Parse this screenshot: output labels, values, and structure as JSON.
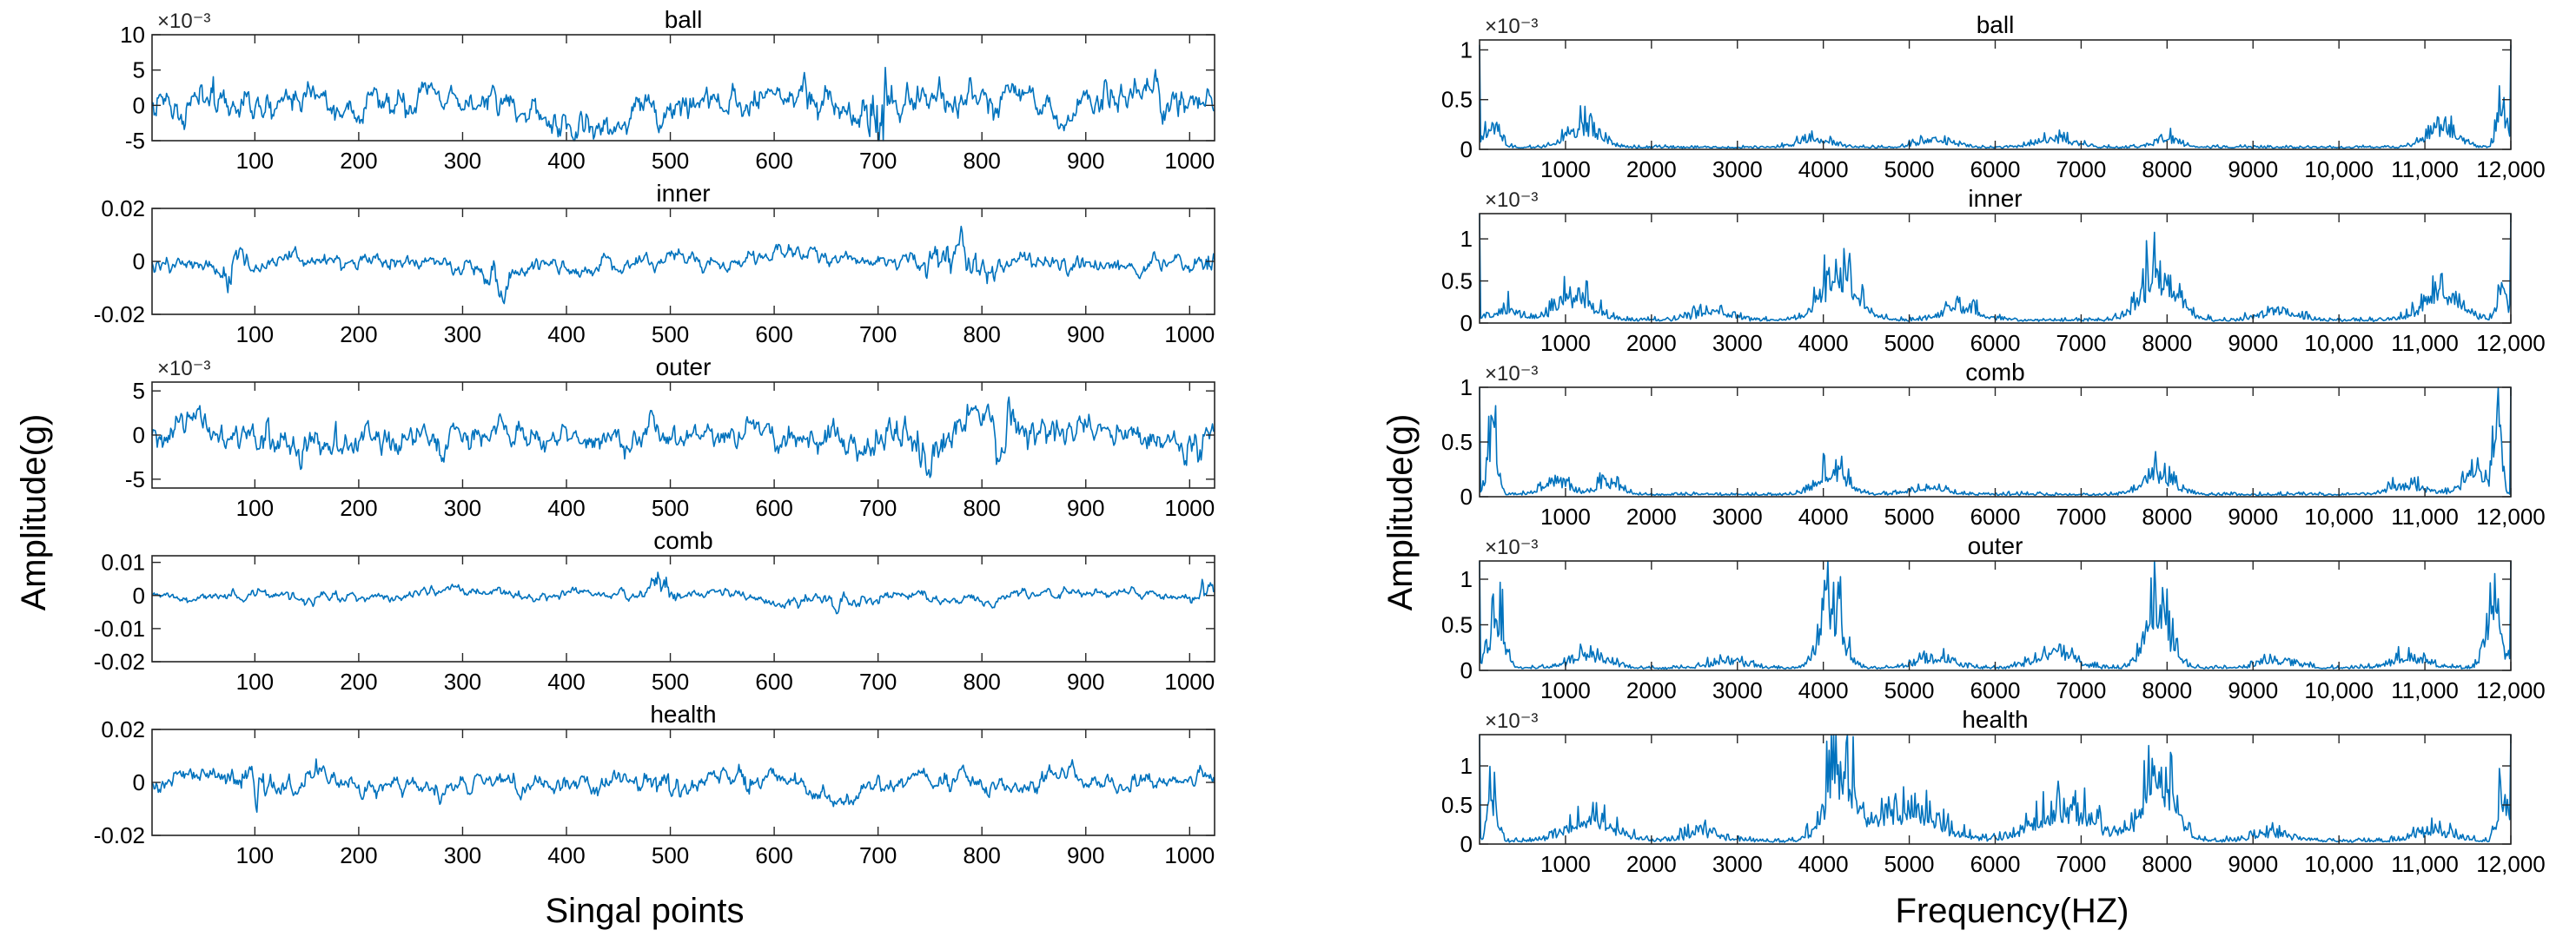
{
  "colors": {
    "trace": "#0072BD",
    "axis": "#262626",
    "background": "#ffffff"
  },
  "chart_data": [
    {
      "panel": "time-domain",
      "type": "line",
      "xlabel": "Singal points",
      "ylabel": "Amplitude(g)",
      "xlim": [
        1,
        1024
      ],
      "xticks": [
        100,
        200,
        300,
        400,
        500,
        600,
        700,
        800,
        900,
        1000
      ],
      "xtick_labels": [
        "100",
        "200",
        "300",
        "400",
        "500",
        "600",
        "700",
        "800",
        "900",
        "1000"
      ],
      "subplots": [
        {
          "title": "ball",
          "exponent": "×10⁻³",
          "ylim": [
            -5,
            10
          ],
          "yticks": [
            -5,
            0,
            5,
            10
          ],
          "ytick_labels": [
            "-5",
            "0",
            "5",
            "10"
          ],
          "amp": 2.6,
          "bias": 0.8,
          "bursts": [
            [
              60,
              4,
              1.5
            ],
            [
              700,
              10,
              3.8
            ],
            [
              990,
              15,
              1.6
            ]
          ],
          "clip": [
            -5,
            10
          ]
        },
        {
          "title": "inner",
          "exponent": "",
          "ylim": [
            -0.02,
            0.02
          ],
          "yticks": [
            -0.02,
            0,
            0.02
          ],
          "ytick_labels": [
            "-0.02",
            "0",
            "0.02"
          ],
          "amp": 0.0036,
          "bias": 0,
          "bursts": [
            [
              80,
              10,
              2.2
            ],
            [
              335,
              12,
              2.3
            ],
            [
              780,
              35,
              2.4
            ],
            [
              1018,
              6,
              2.2
            ]
          ],
          "clip": [
            -0.02,
            0.02
          ]
        },
        {
          "title": "outer",
          "exponent": "×10⁻³",
          "ylim": [
            -6,
            6
          ],
          "yticks": [
            -5,
            0,
            5
          ],
          "ytick_labels": [
            "-5",
            "0",
            "5"
          ],
          "amp": 1.8,
          "bias": 0,
          "bursts": [
            [
              160,
              90,
              1.3
            ],
            [
              745,
              30,
              2.0
            ],
            [
              820,
              15,
              2.2
            ],
            [
              1005,
              10,
              1.6
            ]
          ],
          "clip": [
            -6,
            6
          ]
        },
        {
          "title": "comb",
          "exponent": "",
          "ylim": [
            -0.02,
            0.012
          ],
          "yticks": [
            -0.02,
            -0.01,
            0,
            0.01
          ],
          "ytick_labels": [
            "-0.02",
            "-0.01",
            "0",
            "0.01"
          ],
          "amp": 0.0018,
          "bias": 0,
          "bursts": [
            [
              490,
              12,
              4.0
            ],
            [
              1015,
              8,
              3.2
            ],
            [
              650,
              50,
              1.6
            ]
          ],
          "clip": [
            -0.02,
            0.012
          ]
        },
        {
          "title": "health",
          "exponent": "",
          "ylim": [
            -0.02,
            0.02
          ],
          "yticks": [
            -0.02,
            0,
            0.02
          ],
          "ytick_labels": [
            "-0.02",
            "0",
            "0.02"
          ],
          "amp": 0.0042,
          "bias": 0,
          "bursts": [
            [
              100,
              20,
              2.2
            ],
            [
              495,
              12,
              2.5
            ],
            [
              160,
              10,
              1.7
            ]
          ],
          "clip": [
            -0.02,
            0.02
          ]
        }
      ]
    },
    {
      "panel": "frequency-domain",
      "type": "line",
      "xlabel": "Frequency(HZ)",
      "ylabel": "Amplitude(g)",
      "xlim": [
        0,
        12000
      ],
      "xticks": [
        1000,
        2000,
        3000,
        4000,
        5000,
        6000,
        7000,
        8000,
        9000,
        10000,
        11000,
        12000
      ],
      "xtick_labels": [
        "1000",
        "2000",
        "3000",
        "4000",
        "5000",
        "6000",
        "7000",
        "8000",
        "9000",
        "10,000",
        "11,000",
        "12,000"
      ],
      "subplots": [
        {
          "title": "ball",
          "exponent": "×10⁻³",
          "ylim": [
            0,
            1.1
          ],
          "yticks": [
            0,
            0.5,
            1
          ],
          "ytick_labels": [
            "0",
            "0.5",
            "1"
          ],
          "floor": 0.03,
          "humps": [
            [
              150,
              120,
              0.35
            ],
            [
              1200,
              250,
              0.3
            ],
            [
              3900,
              250,
              0.12
            ],
            [
              5300,
              300,
              0.1
            ],
            [
              6700,
              300,
              0.12
            ],
            [
              8000,
              200,
              0.12
            ],
            [
              11200,
              250,
              0.3
            ],
            [
              11900,
              80,
              0.6
            ]
          ],
          "edge": [
            0,
            1.05
          ]
        },
        {
          "title": "inner",
          "exponent": "×10⁻³",
          "ylim": [
            0,
            1.3
          ],
          "yticks": [
            0,
            0.5,
            1
          ],
          "ytick_labels": [
            "0",
            "0.5",
            "1"
          ],
          "floor": 0.05,
          "humps": [
            [
              300,
              200,
              0.2
            ],
            [
              1100,
              300,
              0.42
            ],
            [
              2700,
              300,
              0.15
            ],
            [
              4200,
              300,
              0.75
            ],
            [
              5600,
              300,
              0.2
            ],
            [
              7900,
              300,
              0.7
            ],
            [
              9300,
              300,
              0.15
            ],
            [
              11200,
              300,
              0.45
            ],
            [
              11900,
              80,
              0.5
            ]
          ],
          "edge": [
            0,
            1.3
          ]
        },
        {
          "title": "comb",
          "exponent": "×10⁻³",
          "ylim": [
            0,
            1.0
          ],
          "yticks": [
            0,
            0.5,
            1
          ],
          "ytick_labels": [
            "0",
            "0.5",
            "1"
          ],
          "floor": 0.03,
          "humps": [
            [
              150,
              80,
              0.75
            ],
            [
              900,
              200,
              0.18
            ],
            [
              1500,
              200,
              0.15
            ],
            [
              4100,
              250,
              0.28
            ],
            [
              5200,
              300,
              0.08
            ],
            [
              7900,
              250,
              0.28
            ],
            [
              10800,
              300,
              0.12
            ],
            [
              11600,
              200,
              0.3
            ],
            [
              11850,
              60,
              0.9
            ]
          ],
          "edge": [
            0,
            1.0
          ]
        },
        {
          "title": "outer",
          "exponent": "×10⁻³",
          "ylim": [
            0,
            1.2
          ],
          "yticks": [
            0,
            0.5,
            1
          ],
          "ytick_labels": [
            "0",
            "0.5",
            "1"
          ],
          "floor": 0.04,
          "humps": [
            [
              200,
              120,
              0.85
            ],
            [
              1300,
              300,
              0.2
            ],
            [
              2900,
              300,
              0.1
            ],
            [
              4100,
              180,
              0.95
            ],
            [
              5300,
              300,
              0.15
            ],
            [
              6700,
              300,
              0.25
            ],
            [
              7900,
              200,
              0.9
            ],
            [
              9300,
              300,
              0.12
            ],
            [
              10800,
              300,
              0.15
            ],
            [
              11800,
              120,
              1.0
            ]
          ],
          "edge": [
            0,
            1.2
          ]
        },
        {
          "title": "health",
          "exponent": "×10⁻³",
          "ylim": [
            0,
            1.4
          ],
          "yticks": [
            0,
            0.5,
            1
          ],
          "ytick_labels": [
            "0",
            "0.5",
            "1"
          ],
          "floor": 0.06,
          "humps": [
            [
              150,
              80,
              0.8
            ],
            [
              1300,
              400,
              0.35
            ],
            [
              2600,
              300,
              0.15
            ],
            [
              4200,
              250,
              1.2
            ],
            [
              5000,
              500,
              0.55
            ],
            [
              6800,
              500,
              0.55
            ],
            [
              7900,
              250,
              1.2
            ],
            [
              9200,
              300,
              0.15
            ],
            [
              11100,
              300,
              0.2
            ],
            [
              11900,
              80,
              0.9
            ]
          ],
          "edge": [
            0,
            1.4
          ]
        }
      ]
    }
  ]
}
